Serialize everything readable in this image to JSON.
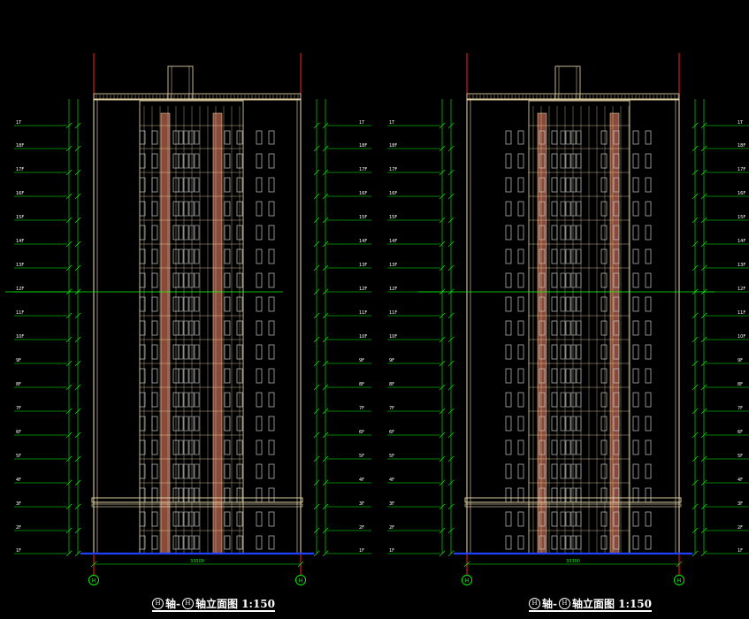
{
  "drawing": {
    "floors": [
      "1F",
      "2F",
      "3F",
      "4F",
      "5F",
      "6F",
      "7F",
      "8F",
      "9F",
      "10F",
      "11F",
      "12F",
      "13F",
      "14F",
      "15F",
      "16F",
      "17F",
      "18F",
      "1T"
    ],
    "axis_circle": "H",
    "dimension_total": "33300",
    "colors": {
      "background": "#000000",
      "outline": "#f0e0b0",
      "dimension": "#00ff00",
      "axis": "#ff2020",
      "ground": "#2040ff",
      "core": "#8a4a3a",
      "window": "#c8c8c8"
    },
    "views": [
      {
        "id": "left",
        "axis_start": "H",
        "axis_end": "H",
        "title": {
          "circle_a": "H",
          "sep": "轴-",
          "circle_b": "H",
          "text": "轴立面图 1:150"
        }
      },
      {
        "id": "right",
        "axis_start": "H",
        "axis_end": "H",
        "title": {
          "circle_a": "H",
          "sep": "轴-",
          "circle_b": "H",
          "text": "轴立面图 1:150"
        }
      }
    ]
  }
}
